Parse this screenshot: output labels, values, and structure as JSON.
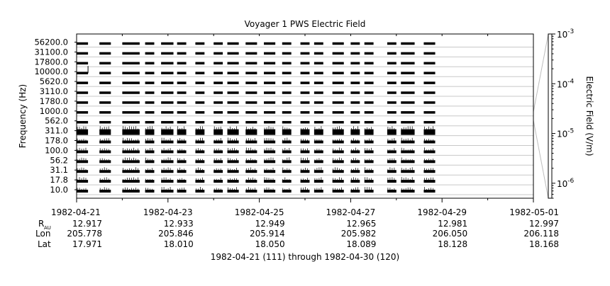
{
  "chart_data": {
    "type": "heatmap",
    "title": "Voyager 1 PWS Electric Field",
    "ylabel": "Frequency (Hz)",
    "colorbar_label": "Electric Field (V/m)",
    "subtitle": "1982-04-21 (111) through 1982-04-30 (120)",
    "frequency_channels": [
      "10.0",
      "17.8",
      "31.1",
      "56.2",
      "100.0",
      "178.0",
      "311.0",
      "562.0",
      "1000.0",
      "1780.0",
      "3110.0",
      "5620.0",
      "10000.0",
      "17800.0",
      "31100.0",
      "56200.0"
    ],
    "x_dates": [
      "1982-04-21",
      "1982-04-23",
      "1982-04-25",
      "1982-04-27",
      "1982-04-29",
      "1982-05-01"
    ],
    "x_range_days": [
      0,
      10
    ],
    "colorbar": {
      "scale": "log",
      "range": [
        5e-07,
        0.001
      ],
      "ticks": [
        {
          "base": "10",
          "exp": "-3",
          "value": 0.001
        },
        {
          "base": "10",
          "exp": "-4",
          "value": 0.0001
        },
        {
          "base": "10",
          "exp": "-5",
          "value": 1e-05
        },
        {
          "base": "10",
          "exp": "-6",
          "value": 1e-06
        }
      ]
    },
    "ephemeris": {
      "labels": {
        "r_main": "R",
        "r_sub": "AU",
        "lon": "Lon",
        "lat": "Lat"
      },
      "r_au": [
        "12.917",
        "12.933",
        "12.949",
        "12.965",
        "12.981",
        "12.997"
      ],
      "lon": [
        "205.778",
        "205.846",
        "205.914",
        "205.982",
        "206.050",
        "206.118"
      ],
      "lat": [
        "17.971",
        "18.010",
        "18.050",
        "18.089",
        "18.128",
        "18.168"
      ]
    },
    "data_coverage_days": [
      [
        0.0,
        0.25
      ],
      [
        0.5,
        0.75
      ],
      [
        1.0,
        1.38
      ],
      [
        1.5,
        1.7
      ],
      [
        1.85,
        2.12
      ],
      [
        2.2,
        2.4
      ],
      [
        2.6,
        2.8
      ],
      [
        3.0,
        3.2
      ],
      [
        3.3,
        3.55
      ],
      [
        3.7,
        3.95
      ],
      [
        4.1,
        4.35
      ],
      [
        4.5,
        4.7
      ],
      [
        4.9,
        5.1
      ],
      [
        5.2,
        5.4
      ],
      [
        5.6,
        5.85
      ],
      [
        6.0,
        6.2
      ],
      [
        6.3,
        6.5
      ],
      [
        6.8,
        7.0
      ],
      [
        7.1,
        7.4
      ],
      [
        7.6,
        7.85
      ]
    ]
  }
}
